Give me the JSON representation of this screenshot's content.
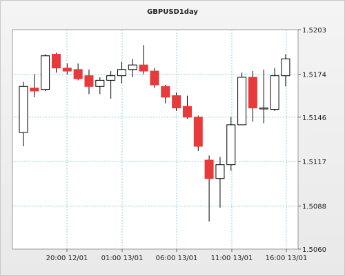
{
  "chart_data": {
    "type": "candlestick",
    "title": "GBPUSD1day",
    "x_tick_labels": [
      "20:00 12/01",
      "01:00 13/01",
      "06:00 13/01",
      "11:00 13/01",
      "16:00 13/01"
    ],
    "y_ticks": [
      1.506,
      1.5088,
      1.5117,
      1.5146,
      1.5174,
      1.5203
    ],
    "y_tick_labels": [
      "1.5060",
      "1.5088",
      "1.5117",
      "1.5146",
      "1.5174",
      "1.5203"
    ],
    "ylim": [
      1.506,
      1.5203
    ],
    "grid": true,
    "bull_color": "#ffffff",
    "bear_color": "#e8393b",
    "candles": [
      {
        "open": 1.5136,
        "high": 1.5169,
        "low": 1.5127,
        "close": 1.5166
      },
      {
        "open": 1.5165,
        "high": 1.5174,
        "low": 1.5159,
        "close": 1.5163
      },
      {
        "open": 1.5164,
        "high": 1.5187,
        "low": 1.5163,
        "close": 1.5186
      },
      {
        "open": 1.5187,
        "high": 1.5188,
        "low": 1.5175,
        "close": 1.5178
      },
      {
        "open": 1.5178,
        "high": 1.5181,
        "low": 1.5174,
        "close": 1.5176
      },
      {
        "open": 1.5177,
        "high": 1.5181,
        "low": 1.517,
        "close": 1.5171
      },
      {
        "open": 1.5173,
        "high": 1.5177,
        "low": 1.5161,
        "close": 1.5166
      },
      {
        "open": 1.5166,
        "high": 1.5172,
        "low": 1.5161,
        "close": 1.517
      },
      {
        "open": 1.517,
        "high": 1.5176,
        "low": 1.5158,
        "close": 1.5173
      },
      {
        "open": 1.5173,
        "high": 1.5182,
        "low": 1.5168,
        "close": 1.5177
      },
      {
        "open": 1.5177,
        "high": 1.5184,
        "low": 1.5172,
        "close": 1.518
      },
      {
        "open": 1.518,
        "high": 1.5193,
        "low": 1.5174,
        "close": 1.5176
      },
      {
        "open": 1.5176,
        "high": 1.5178,
        "low": 1.5165,
        "close": 1.5167
      },
      {
        "open": 1.5166,
        "high": 1.5167,
        "low": 1.5155,
        "close": 1.5159
      },
      {
        "open": 1.516,
        "high": 1.5162,
        "low": 1.515,
        "close": 1.5152
      },
      {
        "open": 1.5153,
        "high": 1.516,
        "low": 1.5145,
        "close": 1.5146
      },
      {
        "open": 1.5146,
        "high": 1.5147,
        "low": 1.5124,
        "close": 1.5127
      },
      {
        "open": 1.5118,
        "high": 1.5121,
        "low": 1.5078,
        "close": 1.5106
      },
      {
        "open": 1.5106,
        "high": 1.512,
        "low": 1.5087,
        "close": 1.5115
      },
      {
        "open": 1.5115,
        "high": 1.5146,
        "low": 1.5111,
        "close": 1.5141
      },
      {
        "open": 1.5141,
        "high": 1.5175,
        "low": 1.5141,
        "close": 1.5172
      },
      {
        "open": 1.5172,
        "high": 1.5176,
        "low": 1.5143,
        "close": 1.5152
      },
      {
        "open": 1.5152,
        "high": 1.5177,
        "low": 1.5142,
        "close": 1.5152
      },
      {
        "open": 1.5151,
        "high": 1.5178,
        "low": 1.515,
        "close": 1.5173
      },
      {
        "open": 1.5173,
        "high": 1.5187,
        "low": 1.5166,
        "close": 1.5184
      }
    ]
  }
}
